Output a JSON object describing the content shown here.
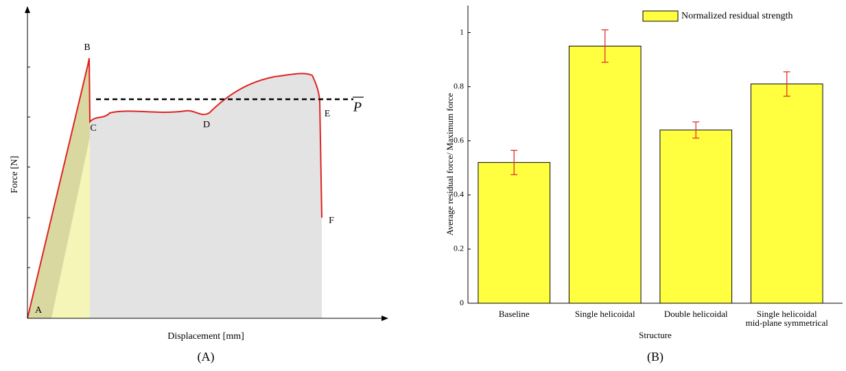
{
  "panel_a": {
    "y_label": "Force [N]",
    "x_label": "Displacement [mm]",
    "points": [
      "A",
      "B",
      "C",
      "D",
      "E",
      "F"
    ],
    "mean_label": "P",
    "caption": "(A)"
  },
  "chart_data": {
    "type": "bar",
    "caption": "(B)",
    "x_label": "Structure",
    "y_label": "Average residual force/ Maximum force",
    "categories": [
      "Baseline",
      "Single helicoidal",
      "Double helicoidal",
      "Single helicoidal\nmid-plane symmetrical"
    ],
    "series": [
      {
        "name": "Normalized residual strength",
        "color": "#ffff40",
        "values": [
          0.52,
          0.95,
          0.64,
          0.81
        ],
        "errors": [
          0.045,
          0.06,
          0.03,
          0.045
        ],
        "error_color": "#e03030"
      }
    ],
    "ylim": [
      0,
      1.1
    ],
    "yticks": [
      0,
      0.2,
      0.4,
      0.6,
      0.8,
      1
    ],
    "legend": "upper right"
  }
}
